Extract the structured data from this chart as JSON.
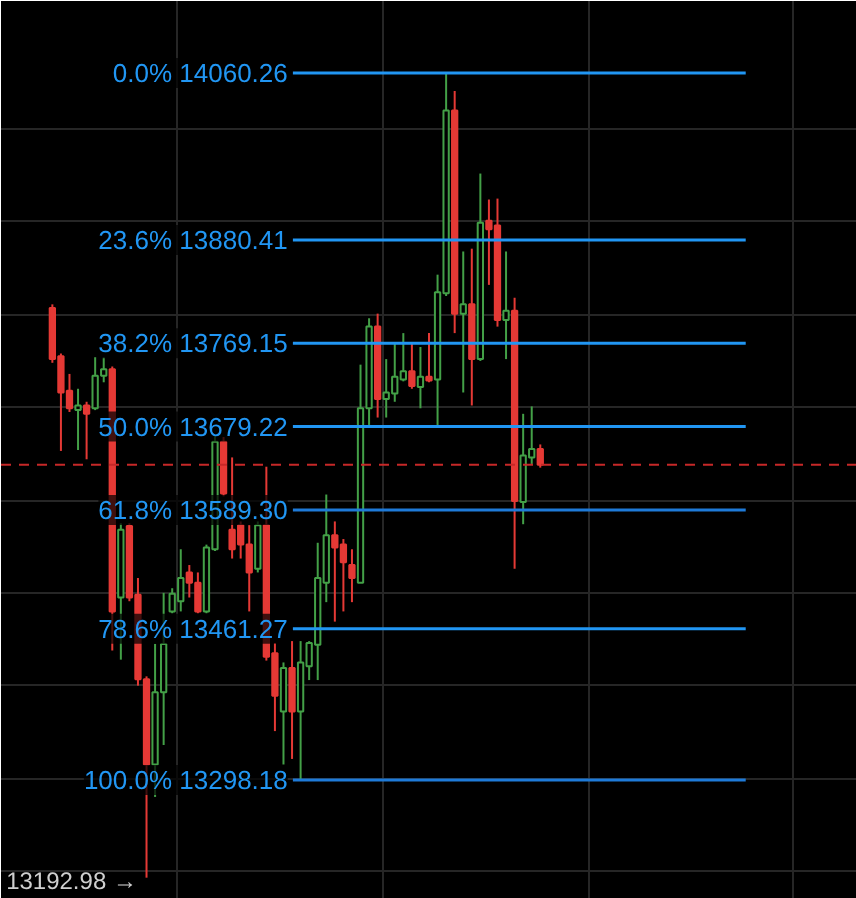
{
  "chart_data": {
    "type": "candlestick",
    "categories": [
      null,
      null,
      null,
      null,
      null,
      null,
      null,
      null,
      null,
      null,
      null,
      null,
      null,
      null,
      null,
      null,
      null,
      null,
      null,
      null,
      null,
      null,
      null,
      null,
      null,
      null,
      null,
      null,
      null,
      null,
      null,
      null,
      null,
      null,
      null,
      null,
      null,
      null,
      null,
      null,
      null,
      null,
      null,
      null,
      null,
      null,
      null,
      null,
      null,
      null,
      null,
      null,
      null,
      null,
      null,
      null,
      null,
      null
    ],
    "ohlc": [
      [
        13807,
        13811,
        13748,
        13752
      ],
      [
        13755,
        13758,
        13653,
        13716
      ],
      [
        13718,
        13736,
        13695,
        13699
      ],
      [
        13697,
        13720,
        13654,
        13702
      ],
      [
        13702,
        13706,
        13644,
        13693
      ],
      [
        13699,
        13754,
        13697,
        13734
      ],
      [
        13734,
        13754,
        13727,
        13741
      ],
      [
        13741,
        13744,
        13438,
        13480
      ],
      [
        13495,
        13575,
        13428,
        13568
      ],
      [
        13572,
        13575,
        13491,
        13495
      ],
      [
        13498,
        13516,
        13400,
        13407
      ],
      [
        13407,
        13410,
        13192.98,
        13315
      ],
      [
        13315,
        13445,
        13280,
        13393
      ],
      [
        13393,
        13500,
        13336,
        13445
      ],
      [
        13480,
        13505,
        13478,
        13499
      ],
      [
        13491,
        13547,
        13480,
        13516
      ],
      [
        13522,
        13530,
        13495,
        13511
      ],
      [
        13511,
        13522,
        13478,
        13480
      ],
      [
        13480,
        13552,
        13478,
        13549
      ],
      [
        13547,
        13670,
        13545,
        13663
      ],
      [
        13663,
        13668,
        13604,
        13607
      ],
      [
        13568,
        13646,
        13537,
        13547
      ],
      [
        13573,
        13577,
        13537,
        13552
      ],
      [
        13552,
        13573,
        13480,
        13522
      ],
      [
        13526,
        13577,
        13522,
        13573
      ],
      [
        13573,
        13636,
        13427,
        13431
      ],
      [
        13435,
        13446,
        13351,
        13389
      ],
      [
        13372,
        13425,
        13315,
        13419
      ],
      [
        13419,
        13448,
        13321,
        13372
      ],
      [
        13372,
        13448,
        13298.18,
        13425
      ],
      [
        13421,
        13448,
        13406,
        13446
      ],
      [
        13444,
        13554,
        13406,
        13516
      ],
      [
        13511,
        13606,
        13490,
        13562
      ],
      [
        13562,
        13577,
        13469,
        13549
      ],
      [
        13552,
        13558,
        13480,
        13533
      ],
      [
        13530,
        13547,
        13490,
        13516
      ],
      [
        13511,
        13746,
        13511,
        13699
      ],
      [
        13699,
        13796,
        13681,
        13787
      ],
      [
        13787,
        13801,
        13689,
        13709
      ],
      [
        13709,
        13752,
        13689,
        13716
      ],
      [
        13715,
        13769,
        13706,
        13733
      ],
      [
        13730,
        13780,
        13728,
        13739
      ],
      [
        13739,
        13769,
        13720,
        13723
      ],
      [
        13722,
        13765,
        13699,
        13733
      ],
      [
        13733,
        13780,
        13727,
        13729
      ],
      [
        13730,
        13843,
        13678,
        13824
      ],
      [
        13823,
        14060.26,
        13820,
        14020
      ],
      [
        14020,
        14041,
        13780,
        13801
      ],
      [
        13801,
        13868,
        13716,
        13811
      ],
      [
        13811,
        13871,
        13702,
        13752
      ],
      [
        13752,
        13952,
        13750,
        13899
      ],
      [
        13901,
        13924,
        13832,
        13892
      ],
      [
        13896,
        13925,
        13787,
        13794
      ],
      [
        13794,
        13868,
        13752,
        13804
      ],
      [
        13804,
        13818,
        13526,
        13599
      ],
      [
        13598,
        13693,
        13574,
        13648
      ],
      [
        13646,
        13701,
        13639,
        13655
      ],
      [
        13655,
        13660,
        13635,
        13638
      ]
    ],
    "colors": [
      "#e53935",
      "#e53935",
      "#e53935",
      "#43a047",
      "#e53935",
      "#43a047",
      "#43a047",
      "#e53935",
      "#43a047",
      "#e53935",
      "#e53935",
      "#e53935",
      "#43a047",
      "#43a047",
      "#43a047",
      "#43a047",
      "#e53935",
      "#e53935",
      "#43a047",
      "#43a047",
      "#e53935",
      "#e53935",
      "#e53935",
      "#e53935",
      "#43a047",
      "#e53935",
      "#e53935",
      "#43a047",
      "#e53935",
      "#43a047",
      "#43a047",
      "#43a047",
      "#43a047",
      "#e53935",
      "#e53935",
      "#e53935",
      "#43a047",
      "#43a047",
      "#e53935",
      "#43a047",
      "#43a047",
      "#43a047",
      "#e53935",
      "#43a047",
      "#e53935",
      "#43a047",
      "#43a047",
      "#e53935",
      "#43a047",
      "#e53935",
      "#43a047",
      "#e53935",
      "#e53935",
      "#43a047",
      "#e53935",
      "#43a047",
      "#43a047",
      "#e53935"
    ],
    "ylim": [
      13170,
      14138
    ],
    "yticks": [
      {
        "value": 13200,
        "label": null
      },
      {
        "value": 13300,
        "label": null
      },
      {
        "value": 13400,
        "label": null
      },
      {
        "value": 13500,
        "label": null
      },
      {
        "value": 13600,
        "label": null
      },
      {
        "value": 13700,
        "label": null
      },
      {
        "value": 13800,
        "label": null
      },
      {
        "value": 13900,
        "label": null
      },
      {
        "value": 14000,
        "label": null
      }
    ],
    "tick_labels": false,
    "grid": true,
    "ref_lines": [
      {
        "axis": "y",
        "value": 14060.26,
        "label": "0.0% 14060.26",
        "color": "#2196f3"
      },
      {
        "axis": "y",
        "value": 13880.41,
        "label": "23.6% 13880.41",
        "color": "#2196f3"
      },
      {
        "axis": "y",
        "value": 13769.15,
        "label": "38.2% 13769.15",
        "color": "#2196f3"
      },
      {
        "axis": "y",
        "value": 13679.22,
        "label": "50.0% 13679.22",
        "color": "#2196f3"
      },
      {
        "axis": "y",
        "value": 13589.3,
        "label": "61.8% 13589.30",
        "color": "#1e7ad8"
      },
      {
        "axis": "y",
        "value": 13461.27,
        "label": "78.6% 13461.27",
        "color": "#2196f3"
      },
      {
        "axis": "y",
        "value": 13298.18,
        "label": "100.0% 13298.18",
        "color": "#1e7ad8"
      },
      {
        "axis": "y",
        "value": 13638,
        "color": "#c62828",
        "line_style": "dashed"
      }
    ],
    "annotations": [
      "13192.98 →"
    ]
  }
}
